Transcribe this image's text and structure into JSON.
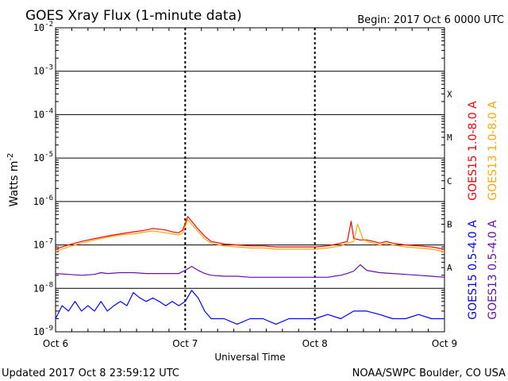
{
  "header": {
    "title": "GOES Xray Flux (1-minute data)",
    "begin": "Begin:  2017 Oct 6 0000 UTC"
  },
  "footer": {
    "updated": "Updated 2017 Oct  8 23:59:12 UTC",
    "credit": "NOAA/SWPC Boulder, CO USA"
  },
  "chart_data": {
    "type": "line",
    "ylabel": "Watts m",
    "ylabel_superscript": "-2",
    "xlabel": "Universal Time",
    "y_scale": "log",
    "ylim": [
      1e-09,
      0.01
    ],
    "y_ticks": [
      {
        "base": "10",
        "exp": "-2",
        "value": 0.01
      },
      {
        "base": "10",
        "exp": "-3",
        "value": 0.001
      },
      {
        "base": "10",
        "exp": "-4",
        "value": 0.0001
      },
      {
        "base": "10",
        "exp": "-5",
        "value": 1e-05
      },
      {
        "base": "10",
        "exp": "-6",
        "value": 1e-06
      },
      {
        "base": "10",
        "exp": "-7",
        "value": 1e-07
      },
      {
        "base": "10",
        "exp": "-8",
        "value": 1e-08
      },
      {
        "base": "10",
        "exp": "-9",
        "value": 1e-09
      }
    ],
    "x_ticks": [
      {
        "label": "Oct 6",
        "day": 0
      },
      {
        "label": "Oct 7",
        "day": 1
      },
      {
        "label": "Oct 8",
        "day": 2
      },
      {
        "label": "Oct 9",
        "day": 3
      }
    ],
    "flare_classes": [
      {
        "label": "X",
        "value": 0.0003
      },
      {
        "label": "M",
        "value": 3e-05
      },
      {
        "label": "C",
        "value": 3e-06
      },
      {
        "label": "B",
        "value": 3e-07
      },
      {
        "label": "A",
        "value": 3e-08
      }
    ],
    "grid": true,
    "legend_placement": "right",
    "series": [
      {
        "name": "GOES15 1.0-8.0 A",
        "color": "#ff0000",
        "x_days": [
          0,
          0.05,
          0.1,
          0.2,
          0.3,
          0.4,
          0.5,
          0.6,
          0.7,
          0.75,
          0.8,
          0.85,
          0.9,
          0.95,
          0.98,
          1.02,
          1.05,
          1.1,
          1.15,
          1.2,
          1.3,
          1.4,
          1.5,
          1.6,
          1.7,
          1.8,
          1.9,
          2.0,
          2.1,
          2.2,
          2.25,
          2.28,
          2.3,
          2.35,
          2.4,
          2.45,
          2.5,
          2.55,
          2.6,
          2.7,
          2.8,
          2.9,
          3.0
        ],
        "values": [
          8e-08,
          9e-08,
          1e-07,
          1.2e-07,
          1.4e-07,
          1.6e-07,
          1.8e-07,
          2e-07,
          2.2e-07,
          2.4e-07,
          2.3e-07,
          2.2e-07,
          2e-07,
          1.9e-07,
          2.2e-07,
          4.5e-07,
          3.5e-07,
          2.3e-07,
          1.6e-07,
          1.2e-07,
          1.05e-07,
          1e-07,
          9.5e-08,
          9.5e-08,
          9e-08,
          9e-08,
          9e-08,
          9e-08,
          9.5e-08,
          1.1e-07,
          1.2e-07,
          3.5e-07,
          1.4e-07,
          1.3e-07,
          1.3e-07,
          1.2e-07,
          1.1e-07,
          1.2e-07,
          1.1e-07,
          1e-07,
          9.5e-08,
          9e-08,
          8e-08
        ]
      },
      {
        "name": "GOES13 1.0-8.0 A",
        "color": "#ffa500",
        "x_days": [
          0,
          0.05,
          0.1,
          0.2,
          0.3,
          0.4,
          0.5,
          0.6,
          0.7,
          0.75,
          0.8,
          0.85,
          0.9,
          0.95,
          0.98,
          1.02,
          1.05,
          1.1,
          1.15,
          1.2,
          1.3,
          1.4,
          1.5,
          1.6,
          1.7,
          1.8,
          1.9,
          2.0,
          2.1,
          2.2,
          2.25,
          2.3,
          2.33,
          2.37,
          2.4,
          2.45,
          2.5,
          2.55,
          2.6,
          2.7,
          2.8,
          2.9,
          3.0
        ],
        "values": [
          7e-08,
          8e-08,
          9e-08,
          1.1e-07,
          1.3e-07,
          1.5e-07,
          1.7e-07,
          1.8e-07,
          2e-07,
          2.1e-07,
          2e-07,
          1.9e-07,
          1.8e-07,
          1.7e-07,
          1.9e-07,
          3.8e-07,
          3e-07,
          2e-07,
          1.4e-07,
          1.1e-07,
          9.5e-08,
          9e-08,
          8.5e-08,
          8.5e-08,
          8e-08,
          8e-08,
          8e-08,
          8e-08,
          8.5e-08,
          9.5e-08,
          1.1e-07,
          1.2e-07,
          3e-07,
          1.4e-07,
          1.2e-07,
          1.1e-07,
          1e-07,
          1.1e-07,
          1e-07,
          9e-08,
          8.5e-08,
          8e-08,
          7e-08
        ]
      },
      {
        "name": "GOES15 0.5-4.0 A",
        "color": "#0000ff",
        "x_days": [
          0,
          0.05,
          0.1,
          0.15,
          0.2,
          0.25,
          0.3,
          0.35,
          0.4,
          0.45,
          0.5,
          0.55,
          0.6,
          0.65,
          0.7,
          0.75,
          0.8,
          0.85,
          0.9,
          0.95,
          1.0,
          1.05,
          1.1,
          1.15,
          1.2,
          1.3,
          1.4,
          1.5,
          1.6,
          1.7,
          1.8,
          1.9,
          2.0,
          2.1,
          2.2,
          2.3,
          2.4,
          2.5,
          2.6,
          2.7,
          2.8,
          2.9,
          3.0
        ],
        "values": [
          2e-09,
          4e-09,
          3e-09,
          5e-09,
          3e-09,
          4e-09,
          3e-09,
          5e-09,
          3e-09,
          4e-09,
          5e-09,
          4e-09,
          8e-09,
          6e-09,
          5e-09,
          6e-09,
          5e-09,
          4e-09,
          5e-09,
          4e-09,
          5e-09,
          9e-09,
          6e-09,
          3e-09,
          2e-09,
          2e-09,
          1.5e-09,
          2e-09,
          2e-09,
          1.5e-09,
          2e-09,
          2e-09,
          2e-09,
          2.5e-09,
          2e-09,
          3e-09,
          3e-09,
          2.5e-09,
          2e-09,
          2e-09,
          2.5e-09,
          2e-09,
          2e-09
        ]
      },
      {
        "name": "GOES13 0.5-4.0 A",
        "color": "#6a0dad",
        "x_days": [
          0,
          0.1,
          0.2,
          0.3,
          0.35,
          0.4,
          0.5,
          0.6,
          0.7,
          0.8,
          0.9,
          0.95,
          1.0,
          1.05,
          1.1,
          1.15,
          1.2,
          1.3,
          1.4,
          1.5,
          1.6,
          1.7,
          1.8,
          1.9,
          2.0,
          2.1,
          2.15,
          2.2,
          2.25,
          2.3,
          2.35,
          2.4,
          2.5,
          2.6,
          2.7,
          2.8,
          2.9,
          3.0
        ],
        "values": [
          2.2e-08,
          2.1e-08,
          2e-08,
          2.1e-08,
          2.3e-08,
          2.2e-08,
          2.3e-08,
          2.3e-08,
          2.2e-08,
          2.2e-08,
          2.2e-08,
          2.2e-08,
          2.6e-08,
          3.2e-08,
          2.6e-08,
          2.2e-08,
          2e-08,
          1.9e-08,
          1.9e-08,
          1.8e-08,
          1.8e-08,
          1.8e-08,
          1.8e-08,
          1.8e-08,
          1.8e-08,
          1.8e-08,
          1.9e-08,
          2e-08,
          2.2e-08,
          2.5e-08,
          3.5e-08,
          2.6e-08,
          2.3e-08,
          2.2e-08,
          2.1e-08,
          2e-08,
          1.9e-08,
          1.8e-08
        ]
      }
    ]
  }
}
